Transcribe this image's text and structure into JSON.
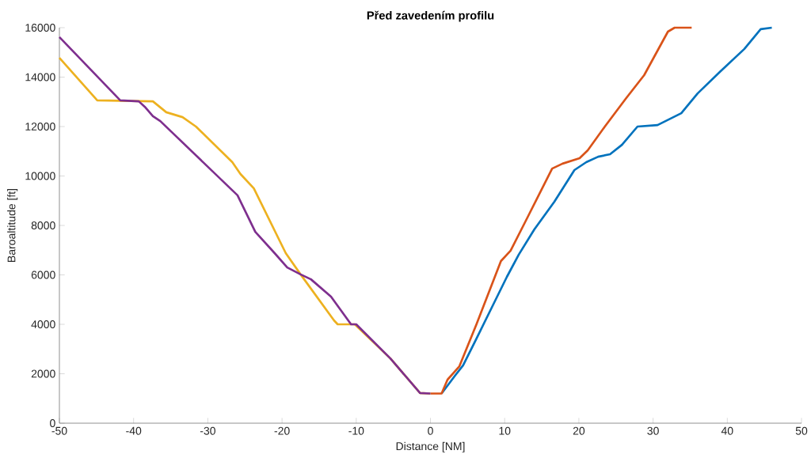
{
  "chart_data": {
    "type": "line",
    "title": "Před zavedením profilu",
    "xlabel": "Distance [NM]",
    "ylabel": "Baroaltitude [ft]",
    "xlim": [
      -50,
      50
    ],
    "ylim": [
      0,
      16000
    ],
    "xticks": [
      -50,
      -40,
      -30,
      -20,
      -10,
      0,
      10,
      20,
      30,
      40,
      50
    ],
    "yticks": [
      0,
      2000,
      4000,
      6000,
      8000,
      10000,
      12000,
      14000,
      16000
    ],
    "grid": false,
    "marker": "none",
    "line_style": "solid",
    "series": [
      {
        "color": "#0072bd",
        "x": [
          1.5,
          3.3,
          4.4,
          6.0,
          8.2,
          10.3,
          11.9,
          14.0,
          16.7,
          19.4,
          21.0,
          22.6,
          24.2,
          25.8,
          27.9,
          30.6,
          33.8,
          36.0,
          39.1,
          42.3,
          44.5,
          46.0
        ],
        "values": [
          1200,
          1920,
          2340,
          3300,
          4640,
          5920,
          6820,
          7840,
          8960,
          10240,
          10560,
          10780,
          10880,
          11260,
          12000,
          12060,
          12540,
          13340,
          14240,
          15140,
          15940,
          16000
        ]
      },
      {
        "color": "#d95319",
        "x": [
          0,
          1.5,
          2.3,
          3.9,
          6.2,
          9.5,
          10.8,
          12.8,
          16.4,
          17.8,
          20.1,
          21.2,
          23.5,
          26.3,
          28.8,
          32.0,
          32.9,
          35.2
        ],
        "values": [
          1200,
          1200,
          1760,
          2300,
          4000,
          6560,
          6980,
          8160,
          10300,
          10500,
          10720,
          11040,
          12000,
          13120,
          14080,
          15840,
          16000,
          16000
        ]
      },
      {
        "color": "#edb120",
        "x": [
          -50,
          -44.9,
          -37.4,
          -35.6,
          -33.4,
          -31.6,
          -26.7,
          -25.6,
          -23.8,
          -19.5,
          -17.5,
          -13.0,
          -12.5,
          -10.2,
          -5.4,
          -1.4,
          0
        ],
        "values": [
          14780,
          13060,
          13020,
          12580,
          12380,
          12000,
          10560,
          10080,
          9500,
          6880,
          6020,
          4160,
          4000,
          4000,
          2620,
          1220,
          1200
        ]
      },
      {
        "color": "#7e2f8e",
        "x": [
          -50,
          -41.8,
          -39.3,
          -38.5,
          -37.4,
          -36.4,
          -26.0,
          -23.6,
          -21.0,
          -19.3,
          -17.5,
          -16.1,
          -13.4,
          -10.7,
          -10.0,
          -5.4,
          -1.4,
          0
        ],
        "values": [
          15620,
          13060,
          13020,
          12800,
          12420,
          12220,
          9220,
          7740,
          6880,
          6300,
          6020,
          5820,
          5120,
          4000,
          4000,
          2620,
          1220,
          1200
        ]
      }
    ]
  }
}
